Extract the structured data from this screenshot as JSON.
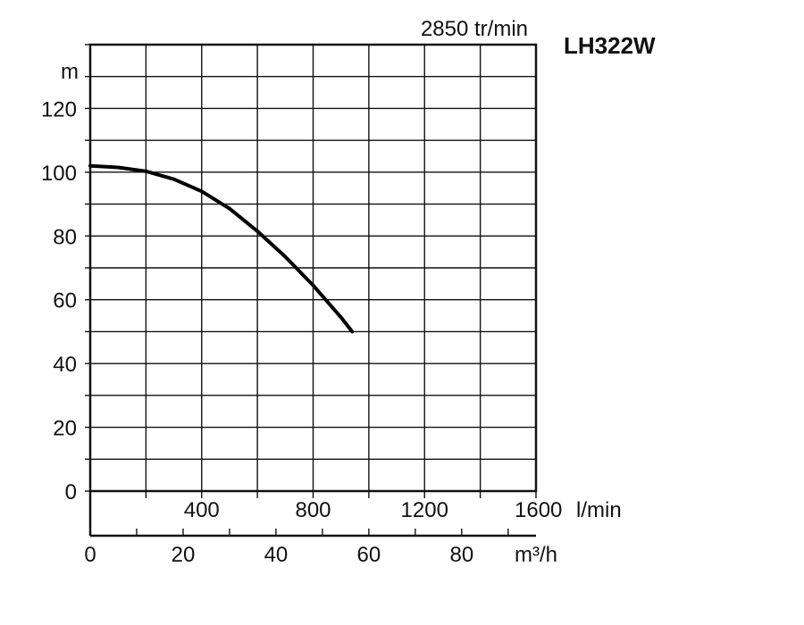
{
  "chart_data": {
    "type": "line",
    "title": "LH322W",
    "subtitle": "2850 tr/min",
    "ylabel": "m",
    "xlabel_lmin": "l/min",
    "xlabel_m3h": "m³/h",
    "ylim": [
      0,
      140
    ],
    "xlim_lmin": [
      0,
      1600
    ],
    "xlim_m3h": [
      0,
      96
    ],
    "y_ticks": [
      "0",
      "20",
      "40",
      "60",
      "80",
      "100",
      "120"
    ],
    "x_ticks_lmin": [
      "400",
      "800",
      "1200",
      "1600"
    ],
    "x_ticks_m3h": [
      "0",
      "20",
      "40",
      "60",
      "80"
    ],
    "grid": true,
    "series": [
      {
        "x": [
          0,
          100,
          200,
          300,
          400,
          500,
          600,
          700,
          800,
          900,
          940
        ],
        "y": [
          102,
          101.5,
          100.3,
          97.8,
          94,
          88.6,
          81.5,
          73.5,
          64.5,
          54.5,
          50
        ]
      }
    ]
  }
}
